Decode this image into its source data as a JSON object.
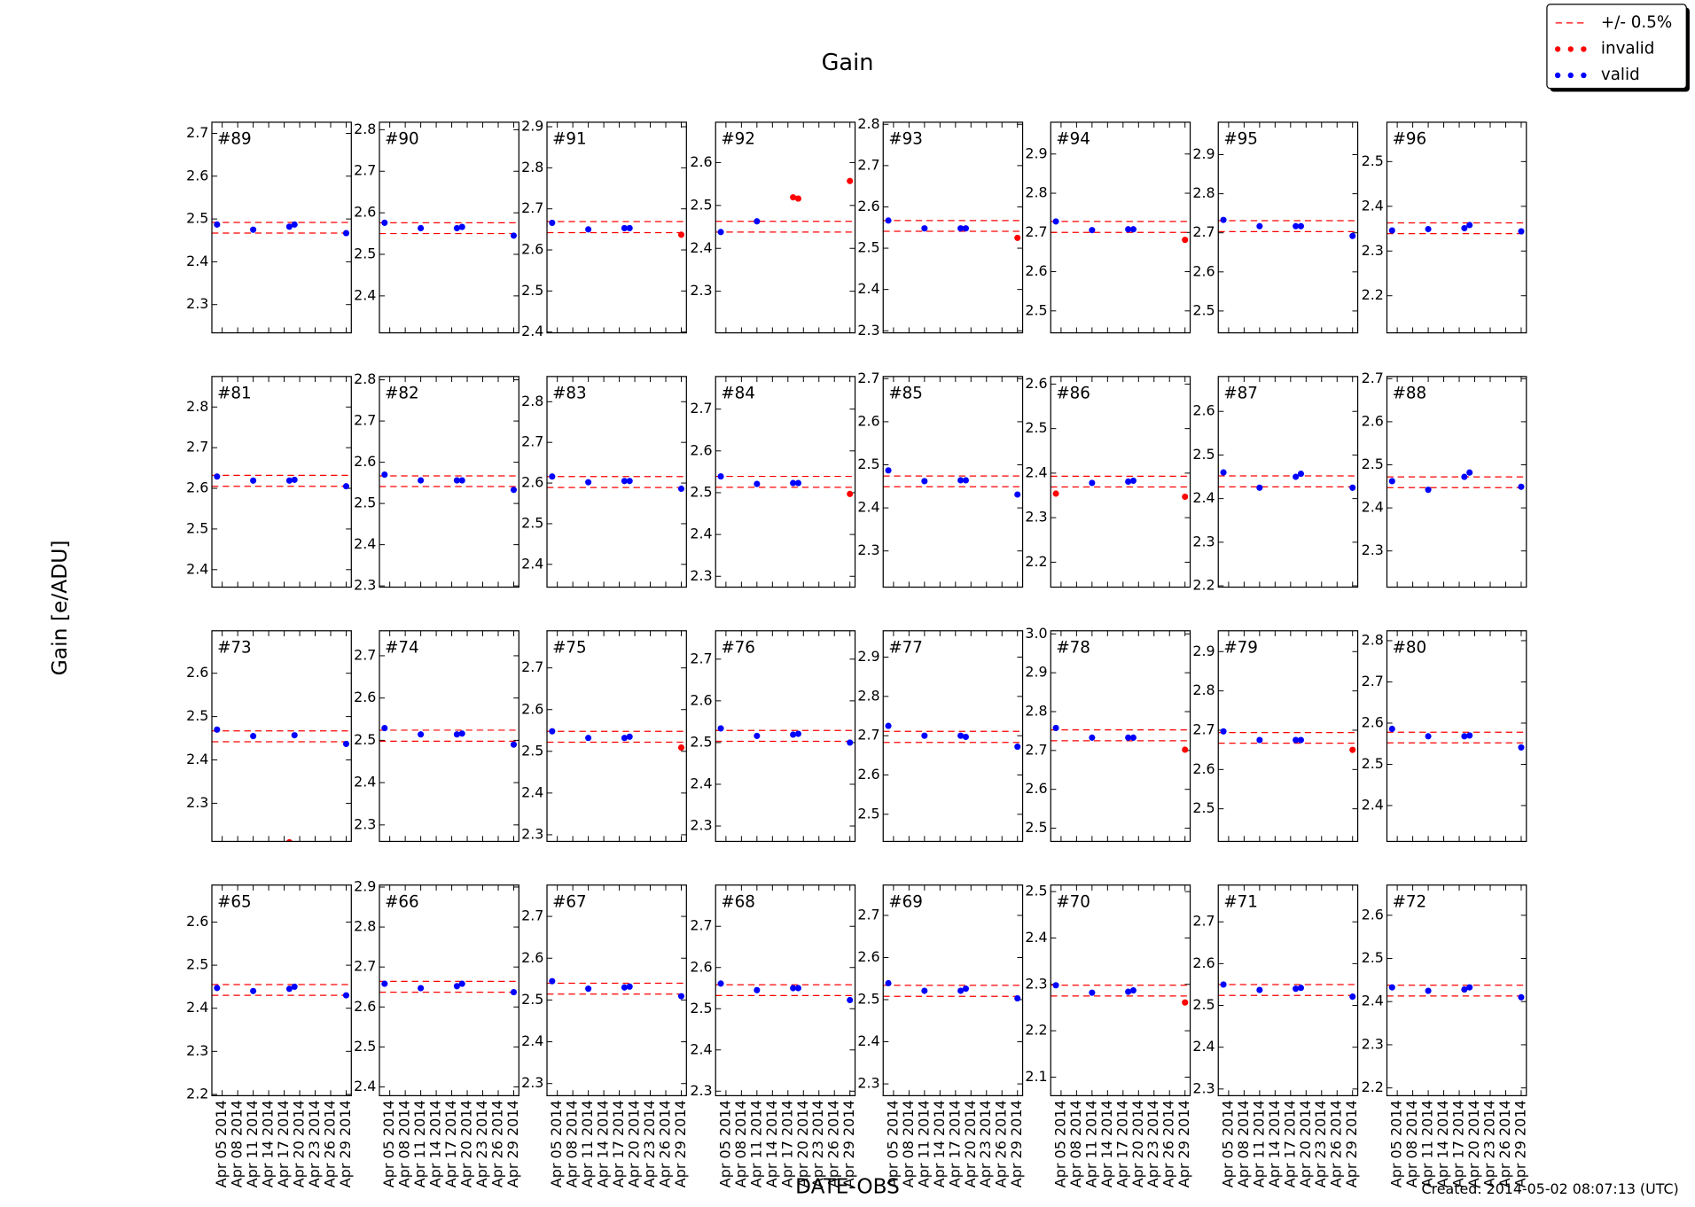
{
  "title": "Gain",
  "ylabel": "Gain [e/ADU]",
  "xlabel": "DATE-OBS",
  "created": "Created: 2014-05-02 08:07:13 (UTC)",
  "legend": {
    "loc": "upper right",
    "entries": [
      {
        "label": "+/- 0.5%",
        "color": "red",
        "style": "dashed"
      },
      {
        "label": "invalid",
        "color": "red",
        "style": "dots"
      },
      {
        "label": "valid",
        "color": "blue",
        "style": "dots"
      }
    ]
  },
  "x": [
    "2014-04-04",
    "2014-04-11",
    "2014-04-18",
    "2014-04-19",
    "2014-04-29"
  ],
  "xlim": [
    "2014-04-03",
    "2014-04-30"
  ],
  "xticks": [
    {
      "value": "2014-04-05",
      "label": "Apr 05 2014"
    },
    {
      "value": "2014-04-08",
      "label": "Apr 08 2014"
    },
    {
      "value": "2014-04-11",
      "label": "Apr 11 2014"
    },
    {
      "value": "2014-04-14",
      "label": "Apr 14 2014"
    },
    {
      "value": "2014-04-17",
      "label": "Apr 17 2014"
    },
    {
      "value": "2014-04-20",
      "label": "Apr 20 2014"
    },
    {
      "value": "2014-04-23",
      "label": "Apr 23 2014"
    },
    {
      "value": "2014-04-26",
      "label": "Apr 26 2014"
    },
    {
      "value": "2014-04-29",
      "label": "Apr 29 2014"
    }
  ],
  "chart_data": [
    {
      "type": "scatter",
      "title": "#89",
      "ylim": [
        2.234,
        2.726
      ],
      "yticks": [
        2.3,
        2.4,
        2.5,
        2.6,
        2.7
      ],
      "band": [
        2.467,
        2.492
      ],
      "values": [
        2.487,
        2.475,
        2.482,
        2.487,
        2.467
      ],
      "colors": [
        "blue",
        "blue",
        "blue",
        "blue",
        "blue"
      ]
    },
    {
      "type": "scatter",
      "title": "#90",
      "ylim": [
        2.311,
        2.818
      ],
      "yticks": [
        2.4,
        2.5,
        2.6,
        2.7,
        2.8
      ],
      "band": [
        2.55,
        2.576
      ],
      "values": [
        2.576,
        2.563,
        2.563,
        2.566,
        2.545
      ],
      "colors": [
        "blue",
        "blue",
        "blue",
        "blue",
        "blue"
      ]
    },
    {
      "type": "scatter",
      "title": "#91",
      "ylim": [
        2.398,
        2.911
      ],
      "yticks": [
        2.4,
        2.5,
        2.6,
        2.7,
        2.8,
        2.9
      ],
      "band": [
        2.642,
        2.669
      ],
      "values": [
        2.666,
        2.65,
        2.653,
        2.653,
        2.637
      ],
      "colors": [
        "blue",
        "blue",
        "blue",
        "blue",
        "red"
      ]
    },
    {
      "type": "scatter",
      "title": "#92",
      "ylim": [
        2.203,
        2.694
      ],
      "yticks": [
        2.3,
        2.4,
        2.5,
        2.6
      ],
      "band": [
        2.438,
        2.463
      ],
      "values": [
        2.438,
        2.463,
        2.519,
        2.516,
        2.557
      ],
      "colors": [
        "blue",
        "blue",
        "red",
        "red",
        "red"
      ]
    },
    {
      "type": "scatter",
      "title": "#93",
      "ylim": [
        2.295,
        2.805
      ],
      "yticks": [
        2.3,
        2.4,
        2.5,
        2.6,
        2.7,
        2.8
      ],
      "band": [
        2.541,
        2.567
      ],
      "values": [
        2.567,
        2.548,
        2.548,
        2.548,
        2.525
      ],
      "colors": [
        "blue",
        "blue",
        "blue",
        "blue",
        "red"
      ]
    },
    {
      "type": "scatter",
      "title": "#94",
      "ylim": [
        2.444,
        2.981
      ],
      "yticks": [
        2.5,
        2.6,
        2.7,
        2.8,
        2.9
      ],
      "band": [
        2.7,
        2.728
      ],
      "values": [
        2.728,
        2.706,
        2.708,
        2.708,
        2.681
      ],
      "colors": [
        "blue",
        "blue",
        "blue",
        "blue",
        "red"
      ]
    },
    {
      "type": "scatter",
      "title": "#95",
      "ylim": [
        2.444,
        2.983
      ],
      "yticks": [
        2.5,
        2.6,
        2.7,
        2.8,
        2.9
      ],
      "band": [
        2.703,
        2.731
      ],
      "values": [
        2.733,
        2.717,
        2.717,
        2.717,
        2.692
      ],
      "colors": [
        "blue",
        "blue",
        "blue",
        "blue",
        "blue"
      ]
    },
    {
      "type": "scatter",
      "title": "#96",
      "ylim": [
        2.117,
        2.588
      ],
      "yticks": [
        2.2,
        2.3,
        2.4,
        2.5
      ],
      "band": [
        2.339,
        2.363
      ],
      "values": [
        2.346,
        2.349,
        2.351,
        2.358,
        2.344
      ],
      "colors": [
        "blue",
        "blue",
        "blue",
        "blue",
        "blue"
      ]
    },
    {
      "type": "scatter",
      "title": "#81",
      "ylim": [
        2.357,
        2.875
      ],
      "yticks": [
        2.4,
        2.5,
        2.6,
        2.7,
        2.8
      ],
      "band": [
        2.605,
        2.632
      ],
      "values": [
        2.629,
        2.619,
        2.619,
        2.621,
        2.605
      ],
      "colors": [
        "blue",
        "blue",
        "blue",
        "blue",
        "blue"
      ]
    },
    {
      "type": "scatter",
      "title": "#82",
      "ylim": [
        2.297,
        2.808
      ],
      "yticks": [
        2.3,
        2.4,
        2.5,
        2.6,
        2.7,
        2.8
      ],
      "band": [
        2.541,
        2.567
      ],
      "values": [
        2.57,
        2.556,
        2.556,
        2.556,
        2.533
      ],
      "colors": [
        "blue",
        "blue",
        "blue",
        "blue",
        "blue"
      ]
    },
    {
      "type": "scatter",
      "title": "#83",
      "ylim": [
        2.344,
        2.862
      ],
      "yticks": [
        2.4,
        2.5,
        2.6,
        2.7,
        2.8
      ],
      "band": [
        2.589,
        2.616
      ],
      "values": [
        2.616,
        2.602,
        2.605,
        2.605,
        2.586
      ],
      "colors": [
        "blue",
        "blue",
        "blue",
        "blue",
        "blue"
      ]
    },
    {
      "type": "scatter",
      "title": "#84",
      "ylim": [
        2.274,
        2.778
      ],
      "yticks": [
        2.3,
        2.4,
        2.5,
        2.6,
        2.7
      ],
      "band": [
        2.513,
        2.539
      ],
      "values": [
        2.539,
        2.521,
        2.523,
        2.523,
        2.497
      ],
      "colors": [
        "blue",
        "blue",
        "blue",
        "blue",
        "red"
      ]
    },
    {
      "type": "scatter",
      "title": "#85",
      "ylim": [
        2.216,
        2.705
      ],
      "yticks": [
        2.3,
        2.4,
        2.5,
        2.6,
        2.7
      ],
      "band": [
        2.449,
        2.474
      ],
      "values": [
        2.487,
        2.462,
        2.464,
        2.464,
        2.431
      ],
      "colors": [
        "blue",
        "blue",
        "blue",
        "blue",
        "blue"
      ]
    },
    {
      "type": "scatter",
      "title": "#86",
      "ylim": [
        2.144,
        2.617
      ],
      "yticks": [
        2.2,
        2.3,
        2.4,
        2.5,
        2.6
      ],
      "band": [
        2.369,
        2.393
      ],
      "values": [
        2.354,
        2.378,
        2.381,
        2.383,
        2.347
      ],
      "colors": [
        "red",
        "blue",
        "blue",
        "blue",
        "red"
      ]
    },
    {
      "type": "scatter",
      "title": "#87",
      "ylim": [
        2.197,
        2.68
      ],
      "yticks": [
        2.2,
        2.3,
        2.4,
        2.5,
        2.6
      ],
      "band": [
        2.427,
        2.452
      ],
      "values": [
        2.46,
        2.425,
        2.45,
        2.457,
        2.425
      ],
      "colors": [
        "blue",
        "blue",
        "blue",
        "blue",
        "blue"
      ]
    },
    {
      "type": "scatter",
      "title": "#88",
      "ylim": [
        2.216,
        2.705
      ],
      "yticks": [
        2.3,
        2.4,
        2.5,
        2.6,
        2.7
      ],
      "band": [
        2.447,
        2.472
      ],
      "values": [
        2.462,
        2.442,
        2.472,
        2.482,
        2.449
      ],
      "colors": [
        "blue",
        "blue",
        "blue",
        "blue",
        "blue"
      ]
    },
    {
      "type": "scatter",
      "title": "#73",
      "ylim": [
        2.212,
        2.698
      ],
      "yticks": [
        2.3,
        2.4,
        2.5,
        2.6
      ],
      "band": [
        2.442,
        2.467
      ],
      "values": [
        2.47,
        2.455,
        2.21,
        2.457,
        2.437
      ],
      "colors": [
        "blue",
        "blue",
        "red",
        "blue",
        "blue"
      ]
    },
    {
      "type": "scatter",
      "title": "#74",
      "ylim": [
        2.261,
        2.759
      ],
      "yticks": [
        2.3,
        2.4,
        2.5,
        2.6,
        2.7
      ],
      "band": [
        2.498,
        2.524
      ],
      "values": [
        2.529,
        2.514,
        2.514,
        2.516,
        2.49
      ],
      "colors": [
        "blue",
        "blue",
        "blue",
        "blue",
        "blue"
      ]
    },
    {
      "type": "scatter",
      "title": "#75",
      "ylim": [
        2.284,
        2.789
      ],
      "yticks": [
        2.3,
        2.4,
        2.5,
        2.6,
        2.7
      ],
      "band": [
        2.522,
        2.548
      ],
      "values": [
        2.548,
        2.532,
        2.532,
        2.535,
        2.509
      ],
      "colors": [
        "blue",
        "blue",
        "blue",
        "blue",
        "red"
      ]
    },
    {
      "type": "scatter",
      "title": "#76",
      "ylim": [
        2.263,
        2.768
      ],
      "yticks": [
        2.3,
        2.4,
        2.5,
        2.6,
        2.7
      ],
      "band": [
        2.503,
        2.529
      ],
      "values": [
        2.534,
        2.516,
        2.519,
        2.521,
        2.5
      ],
      "colors": [
        "blue",
        "blue",
        "blue",
        "blue",
        "blue"
      ]
    },
    {
      "type": "scatter",
      "title": "#77",
      "ylim": [
        2.431,
        2.967
      ],
      "yticks": [
        2.5,
        2.6,
        2.7,
        2.8,
        2.9
      ],
      "band": [
        2.683,
        2.711
      ],
      "values": [
        2.725,
        2.7,
        2.7,
        2.697,
        2.672
      ],
      "colors": [
        "blue",
        "blue",
        "blue",
        "blue",
        "blue"
      ]
    },
    {
      "type": "scatter",
      "title": "#78",
      "ylim": [
        2.466,
        3.008
      ],
      "yticks": [
        2.5,
        2.6,
        2.7,
        2.8,
        2.9,
        {
          "value": 3,
          "label": "3.0"
        }
      ],
      "band": [
        2.725,
        2.753
      ],
      "values": [
        2.758,
        2.733,
        2.733,
        2.733,
        2.702
      ],
      "colors": [
        "blue",
        "blue",
        "blue",
        "blue",
        "red"
      ]
    },
    {
      "type": "scatter",
      "title": "#79",
      "ylim": [
        2.417,
        2.953
      ],
      "yticks": [
        2.5,
        2.6,
        2.7,
        2.8,
        2.9
      ],
      "band": [
        2.667,
        2.694
      ],
      "values": [
        2.697,
        2.675,
        2.675,
        2.675,
        2.65
      ],
      "colors": [
        "blue",
        "blue",
        "blue",
        "blue",
        "red"
      ]
    },
    {
      "type": "scatter",
      "title": "#80",
      "ylim": [
        2.313,
        2.824
      ],
      "yticks": [
        2.4,
        2.5,
        2.6,
        2.7,
        2.8
      ],
      "band": [
        2.552,
        2.578
      ],
      "values": [
        2.586,
        2.568,
        2.568,
        2.57,
        2.541
      ],
      "colors": [
        "blue",
        "blue",
        "blue",
        "blue",
        "blue"
      ]
    },
    {
      "type": "scatter",
      "title": "#65",
      "ylim": [
        2.197,
        2.686
      ],
      "yticks": [
        2.2,
        2.3,
        2.4,
        2.5,
        2.6
      ],
      "band": [
        2.43,
        2.455
      ],
      "values": [
        2.447,
        2.44,
        2.445,
        2.45,
        2.43
      ],
      "colors": [
        "blue",
        "blue",
        "blue",
        "blue",
        "blue"
      ]
    },
    {
      "type": "scatter",
      "title": "#66",
      "ylim": [
        2.378,
        2.905
      ],
      "yticks": [
        2.4,
        2.5,
        2.6,
        2.7,
        2.8,
        2.9
      ],
      "band": [
        2.637,
        2.664
      ],
      "values": [
        2.658,
        2.647,
        2.652,
        2.658,
        2.637
      ],
      "colors": [
        "blue",
        "blue",
        "blue",
        "blue",
        "blue"
      ]
    },
    {
      "type": "scatter",
      "title": "#67",
      "ylim": [
        2.271,
        2.775
      ],
      "yticks": [
        2.3,
        2.4,
        2.5,
        2.6,
        2.7
      ],
      "band": [
        2.514,
        2.54
      ],
      "values": [
        2.545,
        2.527,
        2.53,
        2.532,
        2.509
      ],
      "colors": [
        "blue",
        "blue",
        "blue",
        "blue",
        "blue"
      ]
    },
    {
      "type": "scatter",
      "title": "#68",
      "ylim": [
        2.289,
        2.8
      ],
      "yticks": [
        2.3,
        2.4,
        2.5,
        2.6,
        2.7
      ],
      "band": [
        2.532,
        2.558
      ],
      "values": [
        2.561,
        2.545,
        2.55,
        2.55,
        2.521
      ],
      "colors": [
        "blue",
        "blue",
        "blue",
        "blue",
        "blue"
      ]
    },
    {
      "type": "scatter",
      "title": "#69",
      "ylim": [
        2.272,
        2.772
      ],
      "yticks": [
        2.3,
        2.4,
        2.5,
        2.6,
        2.7
      ],
      "band": [
        2.508,
        2.534
      ],
      "values": [
        2.539,
        2.521,
        2.521,
        2.526,
        2.503
      ],
      "colors": [
        "blue",
        "blue",
        "blue",
        "blue",
        "blue"
      ]
    },
    {
      "type": "scatter",
      "title": "#70",
      "ylim": [
        2.06,
        2.514
      ],
      "yticks": [
        2.1,
        2.2,
        2.3,
        2.4,
        2.5
      ],
      "band": [
        2.275,
        2.298
      ],
      "values": [
        2.298,
        2.282,
        2.284,
        2.287,
        2.261
      ],
      "colors": [
        "blue",
        "blue",
        "blue",
        "blue",
        "red"
      ]
    },
    {
      "type": "scatter",
      "title": "#71",
      "ylim": [
        2.284,
        2.788
      ],
      "yticks": [
        2.3,
        2.4,
        2.5,
        2.6,
        2.7
      ],
      "band": [
        2.524,
        2.55
      ],
      "values": [
        2.55,
        2.537,
        2.54,
        2.542,
        2.521
      ],
      "colors": [
        "blue",
        "blue",
        "blue",
        "blue",
        "blue"
      ]
    },
    {
      "type": "scatter",
      "title": "#72",
      "ylim": [
        2.182,
        2.67
      ],
      "yticks": [
        2.2,
        2.3,
        2.4,
        2.5,
        2.6
      ],
      "band": [
        2.413,
        2.438
      ],
      "values": [
        2.433,
        2.425,
        2.428,
        2.433,
        2.41
      ],
      "colors": [
        "blue",
        "blue",
        "blue",
        "blue",
        "blue"
      ]
    }
  ]
}
